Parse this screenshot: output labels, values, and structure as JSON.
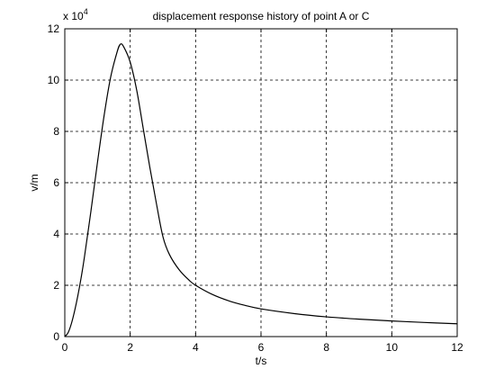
{
  "chart_data": {
    "type": "line",
    "title": "displacement response history of point A or C",
    "xlabel": "t/s",
    "ylabel": "v/m",
    "y_multiplier_base": "x 10",
    "y_multiplier_exponent": "4",
    "xlim": [
      0,
      12
    ],
    "ylim": [
      0,
      12
    ],
    "x_scale_factor_y": 10000,
    "xticks": [
      "0",
      "2",
      "4",
      "6",
      "8",
      "10",
      "12"
    ],
    "yticks": [
      "0",
      "2",
      "4",
      "6",
      "8",
      "10",
      "12"
    ],
    "grid": true,
    "line_color": "#000000",
    "series": [
      {
        "x": [
          0,
          0.1,
          0.2,
          0.3,
          0.4,
          0.5,
          0.6,
          0.8,
          1.0,
          1.2,
          1.4,
          1.6,
          1.7,
          1.8,
          2.0,
          2.2,
          2.4,
          2.6,
          2.8,
          3.0,
          3.2,
          3.5,
          3.8,
          4.0,
          4.5,
          5.0,
          5.5,
          6.0,
          7.0,
          8.0,
          9.0,
          10.0,
          11.0,
          12.0
        ],
        "y": [
          0,
          0.15,
          0.5,
          1.0,
          1.6,
          2.3,
          3.1,
          4.9,
          6.8,
          8.6,
          10.1,
          11.1,
          11.4,
          11.3,
          10.7,
          9.6,
          8.1,
          6.6,
          5.2,
          3.9,
          3.2,
          2.6,
          2.2,
          2.0,
          1.65,
          1.4,
          1.22,
          1.08,
          0.9,
          0.77,
          0.68,
          0.61,
          0.55,
          0.5
        ]
      }
    ]
  }
}
